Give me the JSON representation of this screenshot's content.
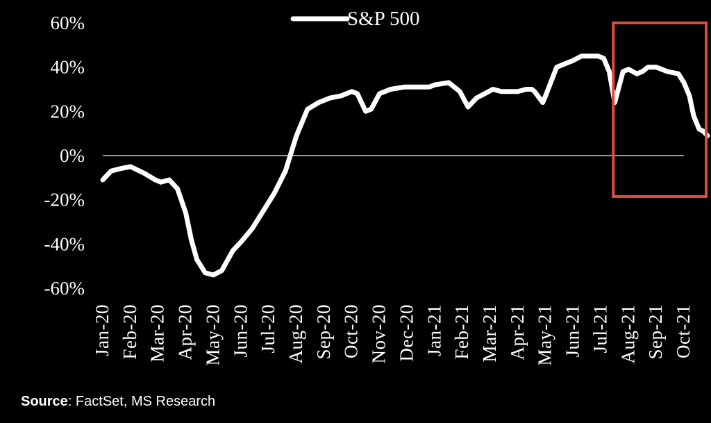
{
  "chart_data": {
    "type": "line",
    "title": "",
    "xlabel": "",
    "ylabel": "",
    "ylim": [
      -0.6,
      0.6
    ],
    "y_ticks": [
      "60%",
      "40%",
      "20%",
      "0%",
      "-20%",
      "-40%",
      "-60%"
    ],
    "y_tick_values": [
      0.6,
      0.4,
      0.2,
      0.0,
      -0.2,
      -0.4,
      -0.6
    ],
    "categories": [
      "Jan-20",
      "Feb-20",
      "Mar-20",
      "Apr-20",
      "May-20",
      "Jun-20",
      "Jul-20",
      "Aug-20",
      "Sep-20",
      "Oct-20",
      "Nov-20",
      "Dec-20",
      "Jan-21",
      "Feb-21",
      "Mar-21",
      "Apr-21",
      "May-21",
      "Jun-21",
      "Jul-21",
      "Aug-21",
      "Sep-21",
      "Oct-21"
    ],
    "legend_position": "top-center",
    "zero_line": true,
    "series": [
      {
        "name": "S&P 500",
        "color": "#ffffff",
        "x": [
          0,
          0.3,
          0.6,
          1.0,
          1.5,
          1.9,
          2.1,
          2.4,
          2.7,
          3.0,
          3.2,
          3.4,
          3.7,
          4.0,
          4.3,
          4.7,
          5.0,
          5.4,
          5.8,
          6.2,
          6.6,
          6.9,
          7.0,
          7.4,
          7.8,
          8.2,
          8.6,
          9.0,
          9.2,
          9.5,
          9.7,
          10.0,
          10.4,
          10.9,
          11.3,
          11.8,
          12.0,
          12.5,
          12.9,
          13.2,
          13.5,
          13.8,
          14.1,
          14.4,
          14.7,
          15.0,
          15.3,
          15.5,
          15.6,
          15.9,
          16.0,
          16.4,
          16.8,
          17.0,
          17.3,
          17.7,
          17.9,
          18.1,
          18.3,
          18.5,
          18.8,
          19.0,
          19.3,
          19.5,
          19.7,
          20.0,
          20.2,
          20.4,
          20.8,
          21.0,
          21.2,
          21.35,
          21.55,
          21.7,
          21.85
        ],
        "y": [
          -0.11,
          -0.07,
          -0.06,
          -0.05,
          -0.08,
          -0.11,
          -0.12,
          -0.11,
          -0.15,
          -0.26,
          -0.38,
          -0.47,
          -0.53,
          -0.54,
          -0.52,
          -0.43,
          -0.39,
          -0.33,
          -0.25,
          -0.17,
          -0.07,
          0.05,
          0.09,
          0.21,
          0.24,
          0.26,
          0.27,
          0.29,
          0.28,
          0.2,
          0.21,
          0.28,
          0.3,
          0.31,
          0.31,
          0.31,
          0.32,
          0.33,
          0.29,
          0.22,
          0.26,
          0.28,
          0.3,
          0.29,
          0.29,
          0.29,
          0.3,
          0.3,
          0.29,
          0.24,
          0.27,
          0.4,
          0.42,
          0.43,
          0.45,
          0.45,
          0.45,
          0.44,
          0.38,
          0.24,
          0.38,
          0.39,
          0.37,
          0.38,
          0.4,
          0.4,
          0.39,
          0.38,
          0.37,
          0.33,
          0.27,
          0.18,
          0.12,
          0.11,
          0.09
        ]
      }
    ],
    "highlight_box": {
      "from": "Aug-21",
      "to": "Oct-21",
      "color": "#e04b3c"
    }
  },
  "source": {
    "label": "Source",
    "text": ": FactSet, MS Research"
  },
  "colors": {
    "background": "#000000",
    "line": "#ffffff",
    "zero_line": "#9a9a9a",
    "highlight": "#e04b3c"
  }
}
